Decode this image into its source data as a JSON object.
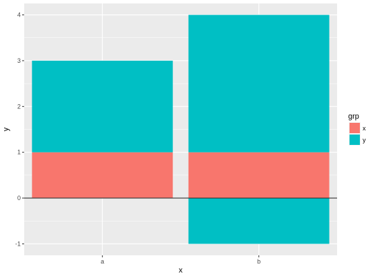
{
  "chart_data": {
    "type": "bar",
    "stacked": true,
    "categories": [
      "a",
      "b"
    ],
    "series": [
      {
        "name": "x",
        "values": [
          1,
          1
        ],
        "color": "#F8766D"
      },
      {
        "name": "y",
        "values": [
          2,
          3
        ],
        "color": "#00BFC4"
      },
      {
        "name": "y",
        "values": [
          0,
          -1
        ],
        "color": "#00BFC4"
      }
    ],
    "xlabel": "x",
    "ylabel": "y",
    "ylim": [
      -1.25,
      4.25
    ],
    "yticks": [
      -1,
      0,
      1,
      2,
      3,
      4
    ],
    "ytick_labels": [
      "-1",
      "0",
      "1",
      "2",
      "3",
      "4"
    ],
    "xtick_labels": [
      "a",
      "b"
    ],
    "hline": 0,
    "grid": true,
    "legend": {
      "title": "grp",
      "placement": "right",
      "entries": [
        {
          "label": "x",
          "color": "#F8766D"
        },
        {
          "label": "y",
          "color": "#00BFC4"
        }
      ]
    },
    "panel_background": "#EBEBEB",
    "gridline_color": "#FFFFFF"
  }
}
